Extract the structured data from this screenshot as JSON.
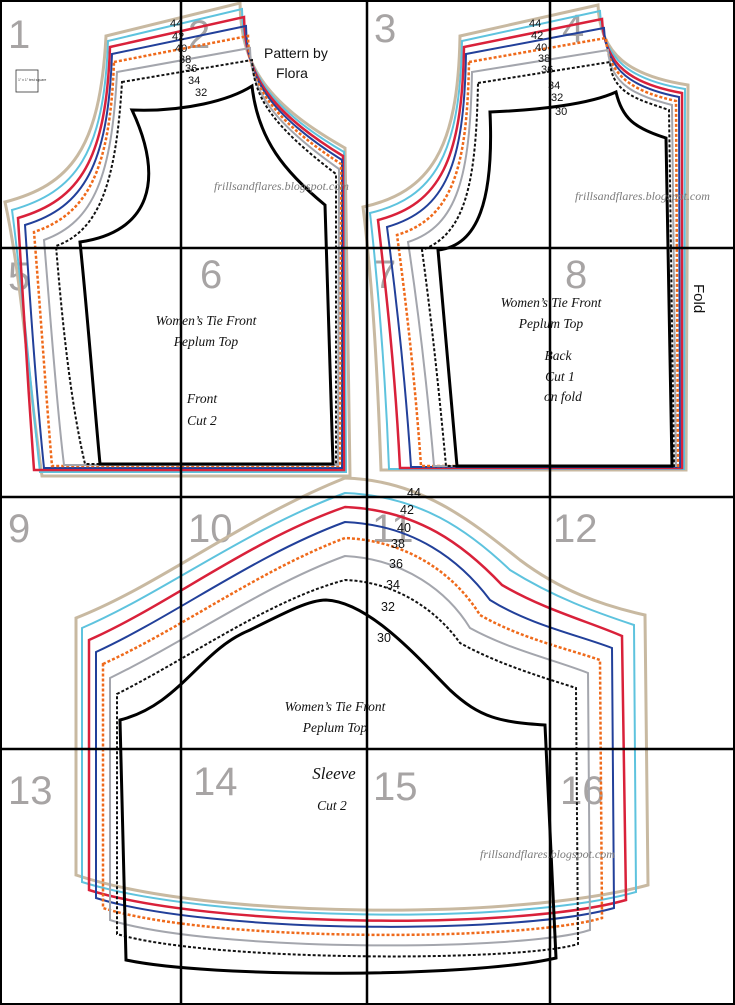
{
  "tile_numbers": [
    "1",
    "2",
    "3",
    "4",
    "5",
    "6",
    "7",
    "8",
    "9",
    "10",
    "11",
    "12",
    "13",
    "14",
    "15",
    "16"
  ],
  "sizes": [
    "44",
    "42",
    "40",
    "38",
    "36",
    "34",
    "32",
    "30"
  ],
  "size_colors": {
    "44": "#c8b9a1",
    "42": "#5ec3de",
    "40": "#d9213a",
    "38": "#22409a",
    "36": "#ef6a1b",
    "34": "#a4a6ad",
    "32": "#111111",
    "30": "#000000"
  },
  "grid_color": "#000000",
  "test_square_label": "1\" x 1\" test square",
  "credit": {
    "line1": "Pattern by",
    "line2": "Flora"
  },
  "watermark": "frillsandflares.blogspot.com",
  "front": {
    "title_line1": "Women’s Tie Front",
    "title_line2": "Peplum Top",
    "piece": "Front",
    "cut": "Cut 2"
  },
  "back": {
    "title_line1": "Women’s Tie Front",
    "title_line2": "Peplum Top",
    "piece": "Back",
    "cut_line1": "Cut 1",
    "cut_line2": "on fold"
  },
  "fold_label": "Fold",
  "sleeve": {
    "title_line1": "Women’s Tie Front",
    "title_line2": "Peplum Top",
    "piece": "Sleeve",
    "cut": "Cut 2"
  }
}
